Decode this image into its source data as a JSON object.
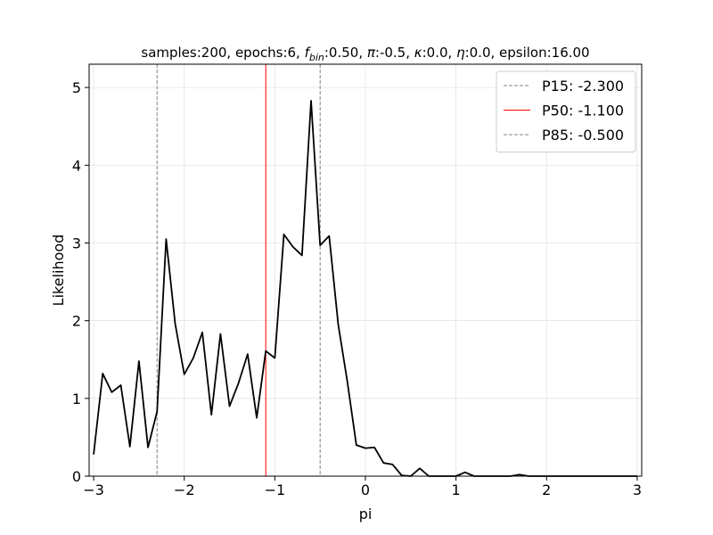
{
  "chart_data": {
    "type": "line",
    "title_parts": [
      {
        "t": "samples:200, epochs:6, ",
        "style": "normal"
      },
      {
        "t": "f",
        "style": "italic"
      },
      {
        "t": "bin",
        "style": "italic-sub"
      },
      {
        "t": ":0.50, ",
        "style": "normal"
      },
      {
        "t": "π",
        "style": "italic"
      },
      {
        "t": ":-0.5, ",
        "style": "normal"
      },
      {
        "t": "κ",
        "style": "italic"
      },
      {
        "t": ":0.0, ",
        "style": "normal"
      },
      {
        "t": "η",
        "style": "italic"
      },
      {
        "t": ":0.0, epsilon:16.00",
        "style": "normal"
      }
    ],
    "xlabel": "pi",
    "ylabel": "Likelihood",
    "xlim": [
      -3.05,
      3.05
    ],
    "ylim": [
      0,
      5.3
    ],
    "xticks": [
      -3,
      -2,
      -1,
      0,
      1,
      2,
      3
    ],
    "xtick_labels": [
      "−3",
      "−2",
      "−1",
      "0",
      "1",
      "2",
      "3"
    ],
    "yticks": [
      0,
      1,
      2,
      3,
      4,
      5
    ],
    "ytick_labels": [
      "0",
      "1",
      "2",
      "3",
      "4",
      "5"
    ],
    "grid": true,
    "legend_position": "top-right",
    "series": [
      {
        "color": "#000000",
        "x": [
          -3.0,
          -2.9,
          -2.8,
          -2.7,
          -2.6,
          -2.5,
          -2.4,
          -2.3,
          -2.2,
          -2.1,
          -2.0,
          -1.9,
          -1.8,
          -1.7,
          -1.6,
          -1.5,
          -1.4,
          -1.3,
          -1.2,
          -1.1,
          -1.0,
          -0.9,
          -0.8,
          -0.7,
          -0.6,
          -0.5,
          -0.4,
          -0.3,
          -0.2,
          -0.1,
          0.0,
          0.1,
          0.2,
          0.3,
          0.4,
          0.5,
          0.6,
          0.7,
          0.8,
          0.9,
          1.0,
          1.1,
          1.2,
          1.3,
          1.4,
          1.5,
          1.6,
          1.7,
          1.8,
          1.9,
          2.0,
          2.1,
          2.2,
          2.3,
          2.4,
          2.5,
          2.6,
          2.7,
          2.8,
          2.9,
          3.0
        ],
        "y": [
          0.28,
          1.32,
          1.08,
          1.17,
          0.38,
          1.48,
          0.37,
          0.83,
          3.05,
          1.96,
          1.31,
          1.52,
          1.85,
          0.79,
          1.83,
          0.9,
          1.2,
          1.57,
          0.75,
          1.61,
          1.52,
          3.11,
          2.95,
          2.84,
          4.83,
          2.97,
          3.09,
          1.95,
          1.22,
          0.4,
          0.36,
          0.37,
          0.17,
          0.15,
          0.01,
          0.0,
          0.1,
          0.0,
          0.0,
          0.0,
          0.0,
          0.05,
          0.0,
          0.0,
          0.0,
          0.0,
          0.0,
          0.02,
          0.0,
          0.0,
          0.0,
          0.0,
          0.0,
          0.0,
          0.0,
          0.0,
          0.0,
          0.0,
          0.0,
          0.0,
          0.0
        ]
      }
    ],
    "vlines": [
      {
        "label": "P15: -2.300",
        "x": -2.3,
        "color": "#808080",
        "dashed": true
      },
      {
        "label": "P50: -1.100",
        "x": -1.1,
        "color": "#ff0000",
        "dashed": false
      },
      {
        "label": "P85: -0.500",
        "x": -0.5,
        "color": "#808080",
        "dashed": true
      }
    ]
  }
}
